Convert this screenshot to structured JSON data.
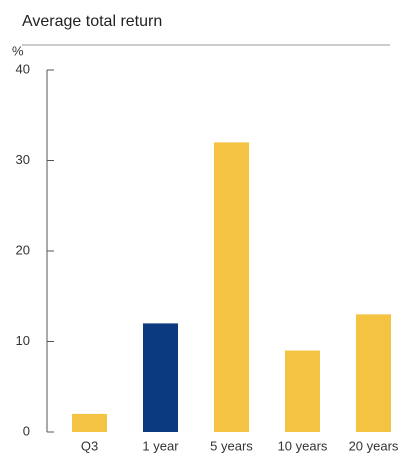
{
  "chart_data": {
    "type": "bar",
    "title": "Average total return",
    "y_label": "%",
    "categories": [
      "Q3",
      "1 year",
      "5 years",
      "10 years",
      "20 years"
    ],
    "values": [
      2,
      12,
      32,
      9,
      13
    ],
    "colors": [
      "#f5c342",
      "#0b3a7e",
      "#f5c342",
      "#f5c342",
      "#f5c342"
    ],
    "ylim": [
      0,
      40
    ],
    "yticks": [
      0,
      10,
      20,
      30,
      40
    ],
    "grid": false
  }
}
